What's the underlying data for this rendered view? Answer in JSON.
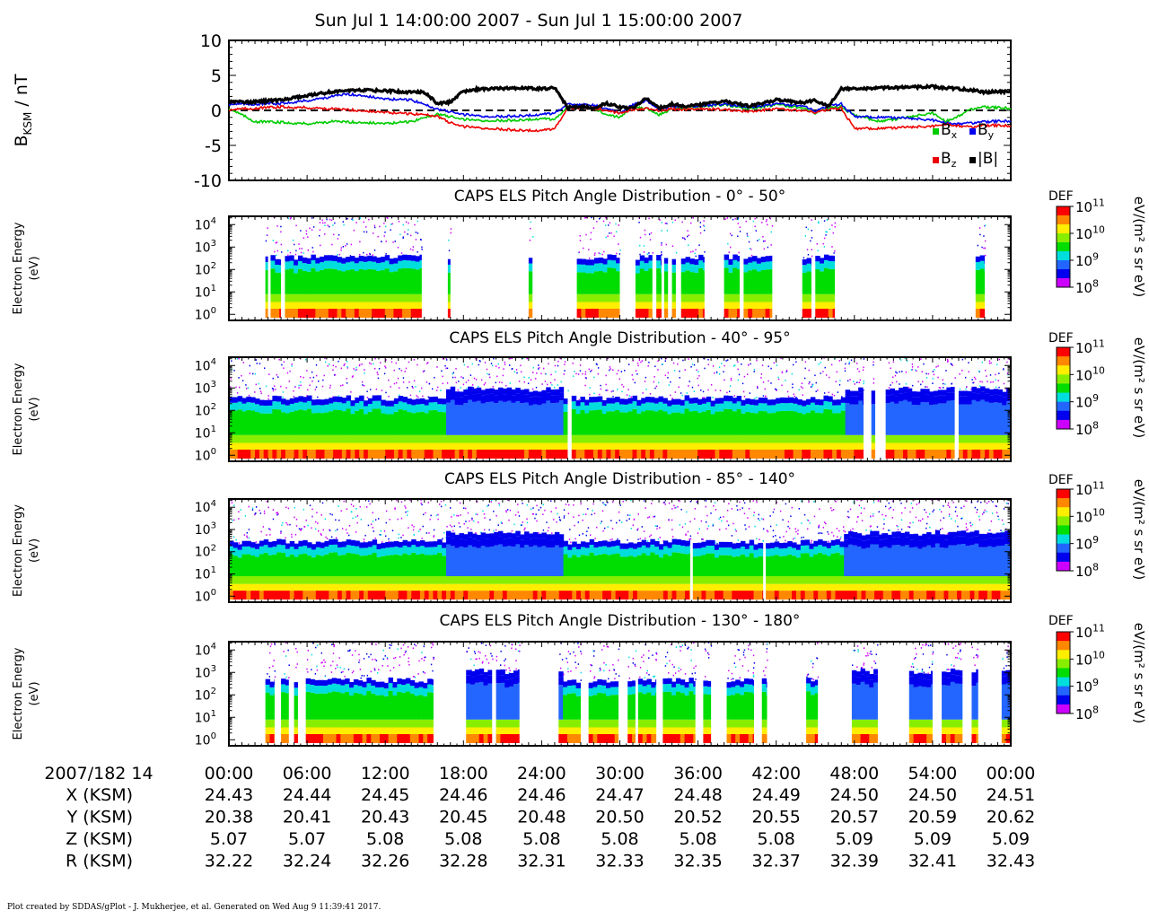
{
  "title": "Sun Jul 1 14:00:00 2007 - Sun Jul 1 15:00:00 2007",
  "footer": "Plot created by SDDAS/gPlot - J. Mukherjee, et al.  Generated on Wed Aug 9 11:39:41 2017.",
  "colors": {
    "Bx": "#00cc00",
    "By": "#0000ee",
    "Bz": "#ee0000",
    "B_total": "#000000",
    "colorbar": [
      "#ff0000",
      "#ff8800",
      "#ffee00",
      "#88ee00",
      "#00dd00",
      "#00dddd",
      "#2266ff",
      "#0000ee",
      "#cc00ff"
    ]
  },
  "chart_data": [
    {
      "type": "line",
      "ylabel": "B",
      "ylabel_sub": "KSM",
      "ylabel_unit": " / nT",
      "ylim": [
        -10,
        10
      ],
      "yticks": [
        "10",
        "5",
        "0",
        "-5",
        "-10"
      ],
      "xlim_minutes": [
        0,
        60
      ],
      "zero_line": "dashed",
      "legend": [
        {
          "key": "Bx",
          "base": "B",
          "sub": "x"
        },
        {
          "key": "By",
          "base": "B",
          "sub": "y"
        },
        {
          "key": "Bz",
          "base": "B",
          "sub": "z"
        },
        {
          "key": "B_total",
          "base": "|B|",
          "sub": ""
        }
      ],
      "series": [
        {
          "name": "B",
          "key": "Bx",
          "x": [
            0,
            2,
            4,
            6,
            8,
            10,
            12,
            14,
            16,
            17,
            18,
            20,
            22,
            24,
            25,
            26,
            27,
            28,
            29,
            30,
            31,
            32,
            33,
            34,
            35,
            36,
            38,
            40,
            42,
            44,
            45,
            46,
            47,
            48,
            50,
            52,
            54,
            55,
            56,
            57,
            58,
            60
          ],
          "y": [
            0.3,
            -1.6,
            -1.7,
            -1.9,
            -1.6,
            -1.7,
            -1.9,
            -1.6,
            -0.5,
            -0.9,
            -1.3,
            -1.5,
            -1.4,
            -1.2,
            -1.3,
            0.4,
            0.6,
            0.3,
            -0.6,
            -1.0,
            0.6,
            0.3,
            -0.6,
            0.2,
            0.4,
            0.6,
            0.8,
            0.2,
            0.8,
            0.4,
            -0.4,
            0.3,
            0.5,
            -0.7,
            -1.6,
            -1.0,
            -0.4,
            -1.6,
            -0.8,
            0.2,
            0.5,
            0.3
          ]
        },
        {
          "name": "B",
          "key": "By",
          "x": [
            0,
            2,
            4,
            6,
            8,
            9,
            10,
            12,
            14,
            16,
            18,
            20,
            22,
            24,
            25,
            26,
            27,
            28,
            29,
            30,
            31,
            32,
            33,
            34,
            35,
            36,
            38,
            40,
            42,
            44,
            45,
            46,
            47,
            48,
            50,
            52,
            54,
            55,
            56,
            57,
            58,
            60
          ],
          "y": [
            0.9,
            0.9,
            1.0,
            1.4,
            2.0,
            2.3,
            2.2,
            1.6,
            1.5,
            0.2,
            -0.6,
            -0.9,
            -0.8,
            -0.6,
            -0.4,
            0.8,
            0.9,
            0.7,
            0.3,
            -0.4,
            0.8,
            1.4,
            0.2,
            0.6,
            0.5,
            0.7,
            0.9,
            0.4,
            0.9,
            0.7,
            -0.1,
            0.6,
            0.9,
            -0.9,
            -1.0,
            -1.1,
            -1.4,
            -1.8,
            -1.9,
            -1.8,
            -1.6,
            -1.5
          ]
        },
        {
          "name": "B",
          "key": "Bz",
          "x": [
            0,
            2,
            4,
            6,
            8,
            10,
            12,
            14,
            15,
            16,
            17,
            18,
            20,
            22,
            24,
            25,
            26,
            27,
            28,
            29,
            30,
            31,
            32,
            33,
            34,
            35,
            36,
            38,
            40,
            42,
            44,
            45,
            46,
            47,
            48,
            50,
            52,
            54,
            55,
            56,
            57,
            58,
            60
          ],
          "y": [
            0.1,
            0.3,
            0.5,
            0.4,
            0.2,
            0.0,
            -0.3,
            -0.5,
            -0.6,
            -0.8,
            -1.8,
            -2.3,
            -2.6,
            -2.8,
            -2.9,
            -2.6,
            0.2,
            0.4,
            0.3,
            0.0,
            -0.4,
            0.1,
            0.3,
            0.0,
            0.2,
            0.1,
            0.3,
            0.1,
            -0.2,
            0.2,
            0.0,
            -0.3,
            0.1,
            0.3,
            -2.6,
            -2.6,
            -2.4,
            -2.3,
            -2.0,
            -2.2,
            -2.4,
            -2.1,
            -2.2
          ]
        },
        {
          "name": "|B|",
          "key": "B_total",
          "x": [
            0,
            2,
            4,
            6,
            8,
            10,
            12,
            14,
            15,
            16,
            17,
            18,
            19,
            20,
            22,
            24,
            25,
            26,
            27,
            28,
            29,
            30,
            31,
            32,
            33,
            34,
            35,
            36,
            38,
            40,
            42,
            44,
            45,
            46,
            47,
            48,
            50,
            52,
            54,
            55,
            56,
            57,
            58,
            60
          ],
          "y": [
            1.3,
            1.2,
            1.5,
            2.1,
            2.7,
            2.9,
            2.8,
            2.6,
            2.6,
            1.0,
            1.2,
            2.7,
            3.0,
            3.1,
            3.2,
            3.1,
            3.2,
            0.4,
            0.5,
            0.4,
            1.0,
            0.5,
            0.3,
            1.8,
            0.3,
            0.9,
            0.6,
            0.8,
            1.3,
            0.6,
            1.5,
            1.1,
            1.4,
            0.6,
            3.1,
            3.1,
            3.2,
            3.3,
            3.4,
            3.2,
            3.1,
            2.9,
            2.6,
            2.7
          ]
        }
      ]
    },
    {
      "type": "heatmap",
      "title": "CAPS ELS Pitch Angle Distribution - 0° - 50°",
      "ylabel": [
        "Electron Energy",
        "(eV)"
      ],
      "yscale": "log",
      "yticks": [
        {
          "base": "10",
          "exp": "4"
        },
        {
          "base": "10",
          "exp": "3"
        },
        {
          "base": "10",
          "exp": "2"
        },
        {
          "base": "10",
          "exp": "1"
        },
        {
          "base": "10",
          "exp": "0"
        }
      ],
      "colorbar": {
        "label": "DEF",
        "units": "eV/(m² s sr eV)",
        "ticks": [
          {
            "base": "10",
            "exp": "11"
          },
          {
            "base": "10",
            "exp": "10"
          },
          {
            "base": "10",
            "exp": "9"
          },
          {
            "base": "10",
            "exp": "8"
          }
        ]
      },
      "data_intervals_minutes": [
        [
          2.8,
          3.0
        ],
        [
          3.2,
          4.0
        ],
        [
          4.3,
          14.8
        ],
        [
          16.8,
          17.0
        ],
        [
          23.0,
          23.3
        ],
        [
          26.7,
          30.0
        ],
        [
          31.2,
          32.5
        ],
        [
          32.8,
          33.2
        ],
        [
          33.4,
          33.7
        ],
        [
          34.0,
          34.3
        ],
        [
          34.7,
          36.5
        ],
        [
          38.0,
          39.2
        ],
        [
          39.5,
          41.7
        ],
        [
          44.0,
          44.7
        ],
        [
          45.0,
          46.5
        ],
        [
          57.3,
          58.0
        ]
      ]
    },
    {
      "type": "heatmap",
      "title": "CAPS ELS Pitch Angle Distribution - 40° - 95°",
      "ylabel": [
        "Electron Energy",
        "(eV)"
      ],
      "yscale": "log",
      "yticks": [
        {
          "base": "10",
          "exp": "4"
        },
        {
          "base": "10",
          "exp": "3"
        },
        {
          "base": "10",
          "exp": "2"
        },
        {
          "base": "10",
          "exp": "1"
        },
        {
          "base": "10",
          "exp": "0"
        }
      ],
      "colorbar": {
        "label": "DEF",
        "units": "eV/(m² s sr eV)",
        "ticks": [
          {
            "base": "10",
            "exp": "11"
          },
          {
            "base": "10",
            "exp": "10"
          },
          {
            "base": "10",
            "exp": "9"
          },
          {
            "base": "10",
            "exp": "8"
          }
        ]
      },
      "data_intervals_minutes": [
        [
          0,
          26.0
        ],
        [
          26.3,
          48.7
        ],
        [
          49.3,
          49.6
        ],
        [
          50.4,
          55.7
        ],
        [
          56.0,
          60
        ]
      ]
    },
    {
      "type": "heatmap",
      "title": "CAPS ELS Pitch Angle Distribution - 85° - 140°",
      "ylabel": [
        "Electron Energy",
        "(eV)"
      ],
      "yscale": "log",
      "yticks": [
        {
          "base": "10",
          "exp": "4"
        },
        {
          "base": "10",
          "exp": "3"
        },
        {
          "base": "10",
          "exp": "2"
        },
        {
          "base": "10",
          "exp": "1"
        },
        {
          "base": "10",
          "exp": "0"
        }
      ],
      "colorbar": {
        "label": "DEF",
        "units": "eV/(m² s sr eV)",
        "ticks": [
          {
            "base": "10",
            "exp": "11"
          },
          {
            "base": "10",
            "exp": "10"
          },
          {
            "base": "10",
            "exp": "9"
          },
          {
            "base": "10",
            "exp": "8"
          }
        ]
      },
      "data_intervals_minutes": [
        [
          0,
          35.4
        ],
        [
          35.6,
          41.0
        ],
        [
          41.2,
          60
        ]
      ]
    },
    {
      "type": "heatmap",
      "title": "CAPS ELS Pitch Angle Distribution - 130° - 180°",
      "ylabel": [
        "Electron Energy",
        "(eV)"
      ],
      "yscale": "log",
      "yticks": [
        {
          "base": "10",
          "exp": "4"
        },
        {
          "base": "10",
          "exp": "3"
        },
        {
          "base": "10",
          "exp": "2"
        },
        {
          "base": "10",
          "exp": "1"
        },
        {
          "base": "10",
          "exp": "0"
        }
      ],
      "colorbar": {
        "label": "DEF",
        "units": "eV/(m² s sr eV)",
        "ticks": [
          {
            "base": "10",
            "exp": "11"
          },
          {
            "base": "10",
            "exp": "10"
          },
          {
            "base": "10",
            "exp": "9"
          },
          {
            "base": "10",
            "exp": "8"
          }
        ]
      },
      "data_intervals_minutes": [
        [
          2.8,
          3.5
        ],
        [
          4.0,
          4.6
        ],
        [
          5.0,
          5.3
        ],
        [
          5.9,
          15.7
        ],
        [
          18.2,
          20.2
        ],
        [
          20.5,
          22.3
        ],
        [
          25.3,
          27.0
        ],
        [
          27.6,
          29.9
        ],
        [
          30.6,
          31.2
        ],
        [
          31.4,
          32.8
        ],
        [
          33.3,
          35.8
        ],
        [
          36.4,
          37.0
        ],
        [
          38.2,
          40.3
        ],
        [
          40.9,
          41.3
        ],
        [
          44.3,
          45.2
        ],
        [
          47.8,
          49.8
        ],
        [
          52.2,
          54.0
        ],
        [
          54.7,
          56.3
        ],
        [
          57.0,
          57.5
        ],
        [
          59.3,
          60
        ]
      ]
    }
  ],
  "ephemeris": {
    "header_label": "2007/182 14",
    "times": [
      "00:00",
      "06:00",
      "12:00",
      "18:00",
      "24:00",
      "30:00",
      "36:00",
      "42:00",
      "48:00",
      "54:00",
      "00:00"
    ],
    "rows": [
      {
        "label": "X (KSM)",
        "values": [
          "24.43",
          "24.44",
          "24.45",
          "24.46",
          "24.46",
          "24.47",
          "24.48",
          "24.49",
          "24.50",
          "24.50",
          "24.51"
        ]
      },
      {
        "label": "Y (KSM)",
        "values": [
          "20.38",
          "20.41",
          "20.43",
          "20.45",
          "20.48",
          "20.50",
          "20.52",
          "20.55",
          "20.57",
          "20.59",
          "20.62"
        ]
      },
      {
        "label": "Z (KSM)",
        "values": [
          "5.07",
          "5.07",
          "5.08",
          "5.08",
          "5.08",
          "5.08",
          "5.08",
          "5.08",
          "5.09",
          "5.09",
          "5.09"
        ]
      },
      {
        "label": "R (KSM)",
        "values": [
          "32.22",
          "32.24",
          "32.26",
          "32.28",
          "32.31",
          "32.33",
          "32.35",
          "32.37",
          "32.39",
          "32.41",
          "32.43"
        ]
      }
    ]
  }
}
